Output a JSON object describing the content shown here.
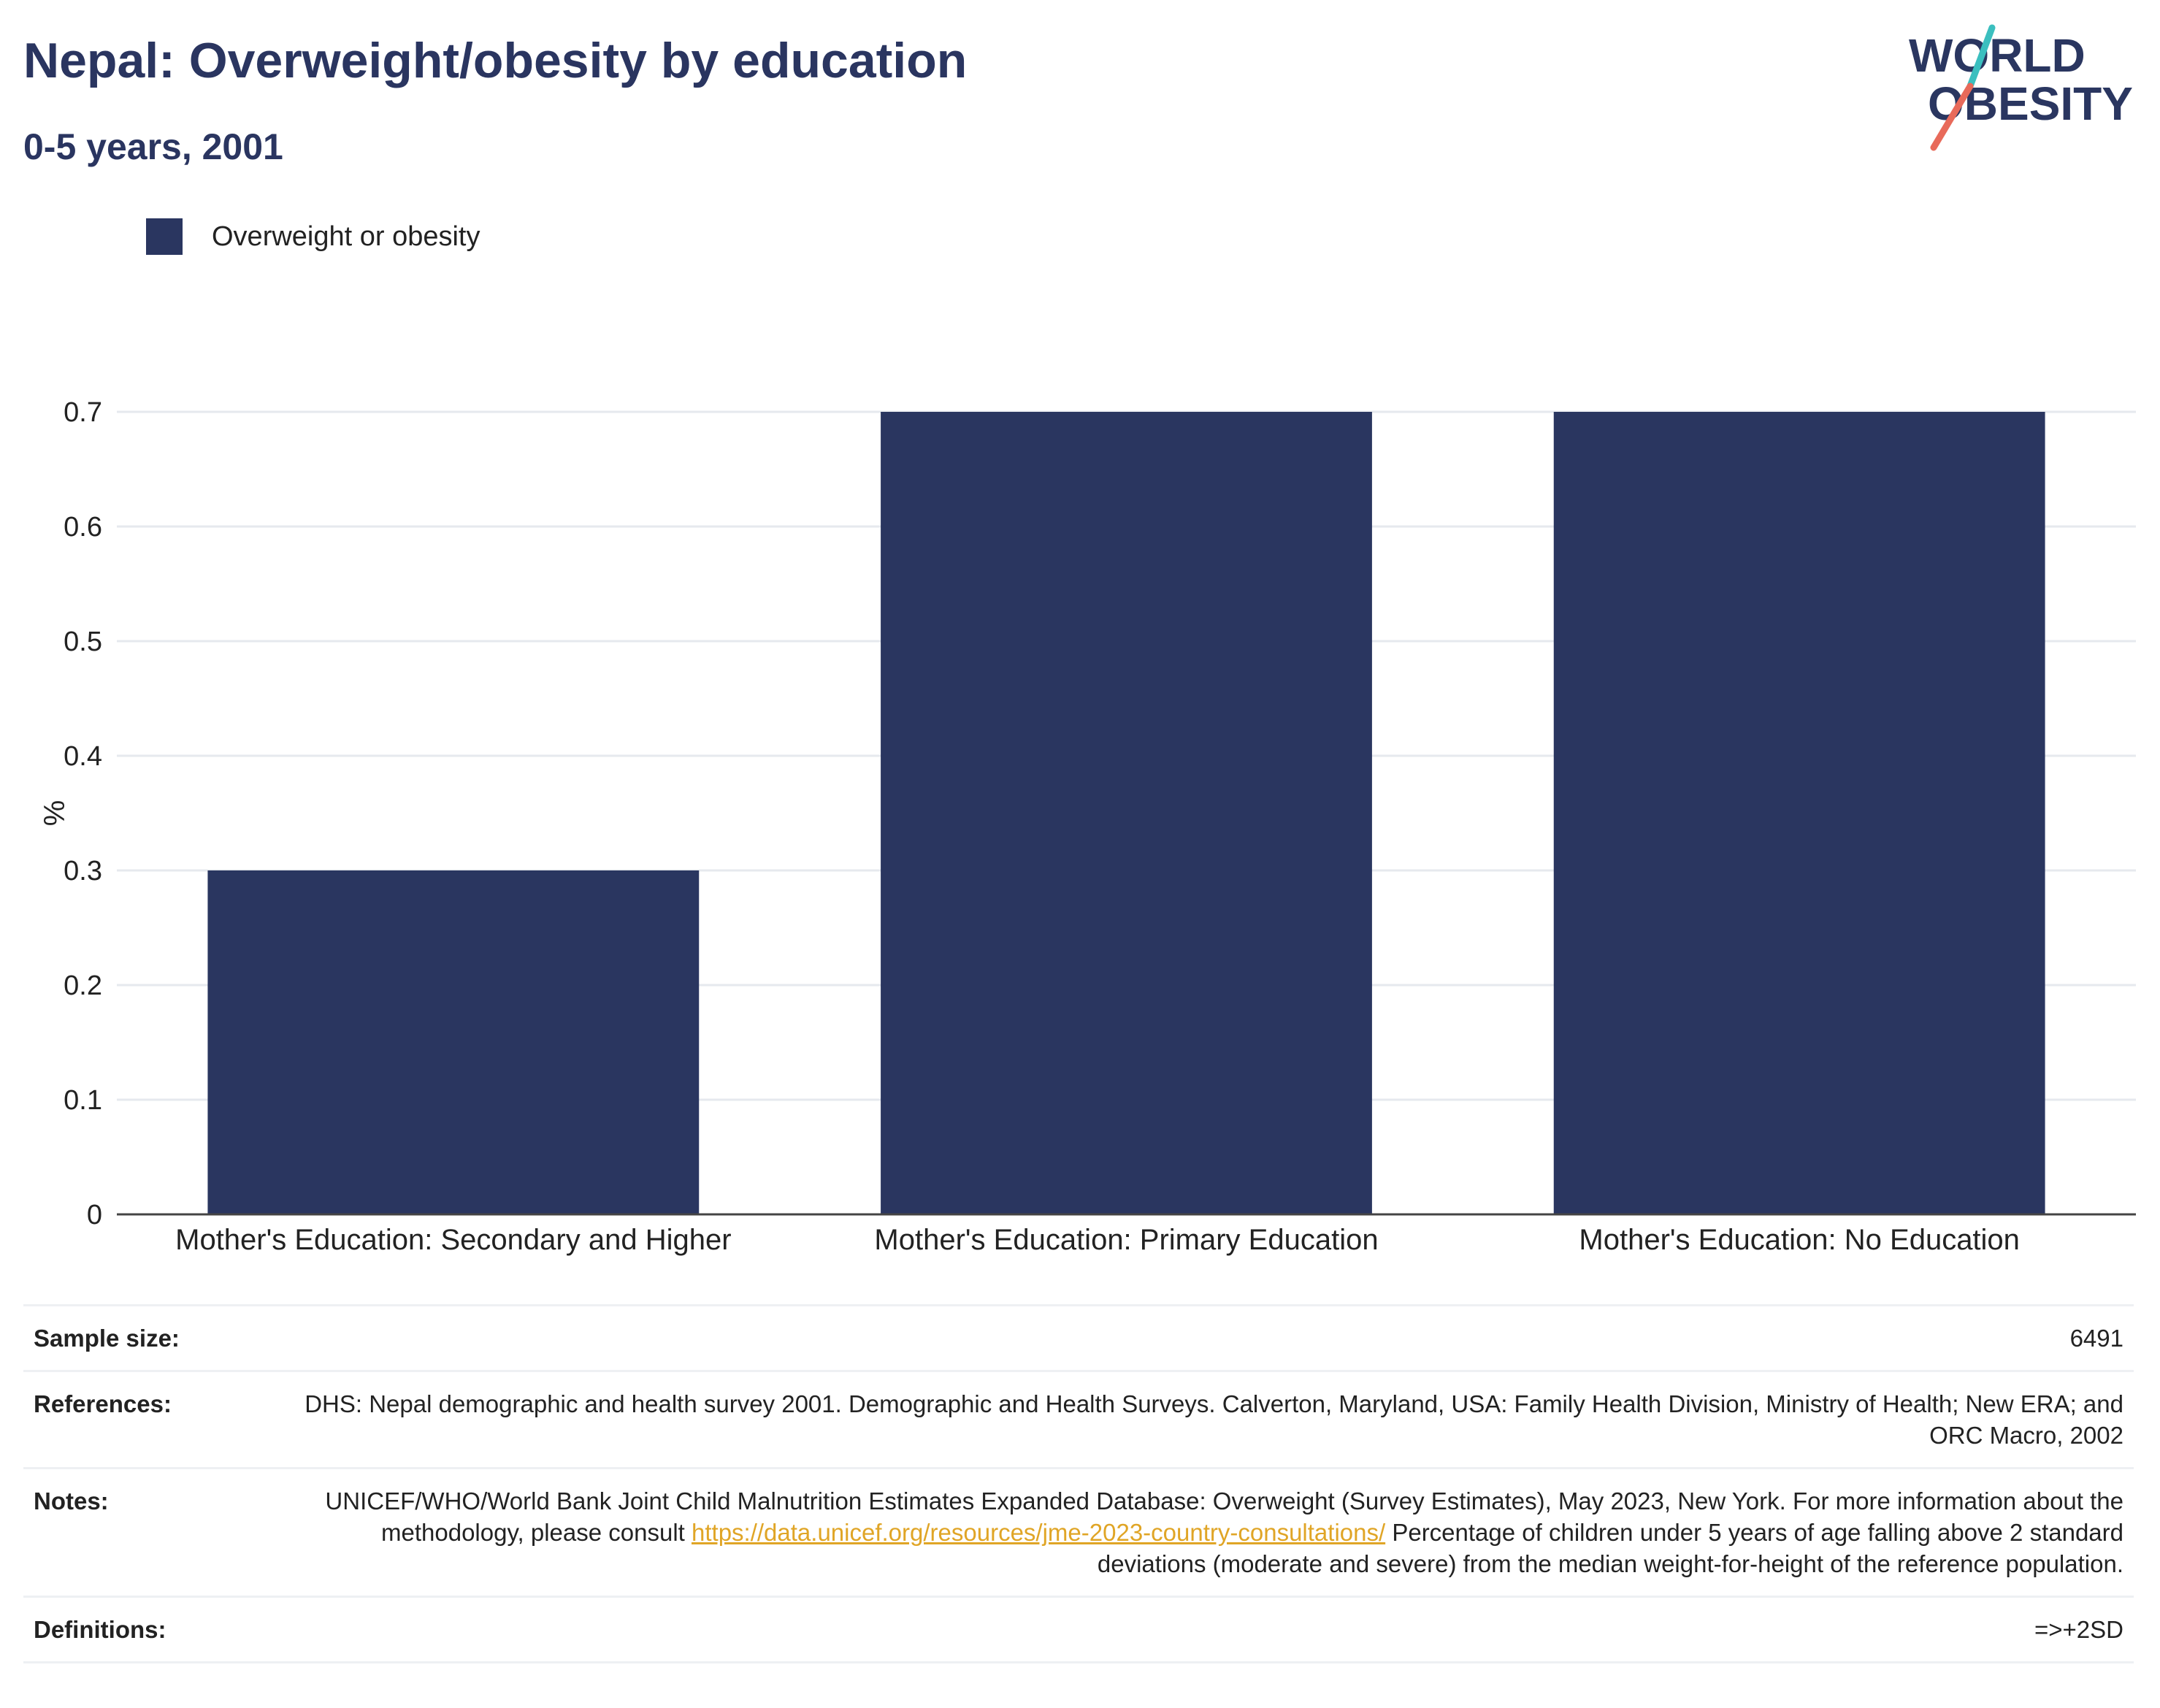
{
  "header": {
    "title": "Nepal: Overweight/obesity by education",
    "subtitle": "0-5 years, 2001"
  },
  "logo": {
    "line1": "WORLD",
    "line2": "OBESITY"
  },
  "legend": {
    "label": "Overweight or obesity",
    "color": "#2a3660"
  },
  "chart_data": {
    "type": "bar",
    "categories": [
      "Mother's Education: Secondary and Higher",
      "Mother's Education: Primary Education",
      "Mother's Education: No Education"
    ],
    "series": [
      {
        "name": "Overweight or obesity",
        "values": [
          0.3,
          0.7,
          0.7
        ],
        "color": "#2a3660"
      }
    ],
    "ylabel": "%",
    "ylim": [
      0,
      0.7
    ],
    "yticks": [
      "0",
      "0.1",
      "0.2",
      "0.3",
      "0.4",
      "0.5",
      "0.6",
      "0.7"
    ],
    "grid": true,
    "legend_position": "top-left"
  },
  "info": {
    "sample_label": "Sample size:",
    "sample_value": "6491",
    "references_label": "References:",
    "references_value": "DHS: Nepal demographic and health survey 2001. Demographic and Health Surveys. Calverton, Maryland, USA: Family Health Division, Ministry of Health; New ERA; and ORC Macro, 2002",
    "notes_label": "Notes:",
    "notes_text1": "UNICEF/WHO/World Bank Joint Child Malnutrition Estimates Expanded Database: Overweight (Survey Estimates), May 2023, New York. For more information about the methodology, please consult",
    "notes_link": "https://data.unicef.org/resources/jme-2023-country-consultations/",
    "notes_text2": "Percentage of children under 5 years of age falling above 2 standard deviations (moderate and severe) from the median weight-for-height of the reference population.",
    "definitions_label": "Definitions:",
    "definitions_value": "=>+2SD"
  }
}
